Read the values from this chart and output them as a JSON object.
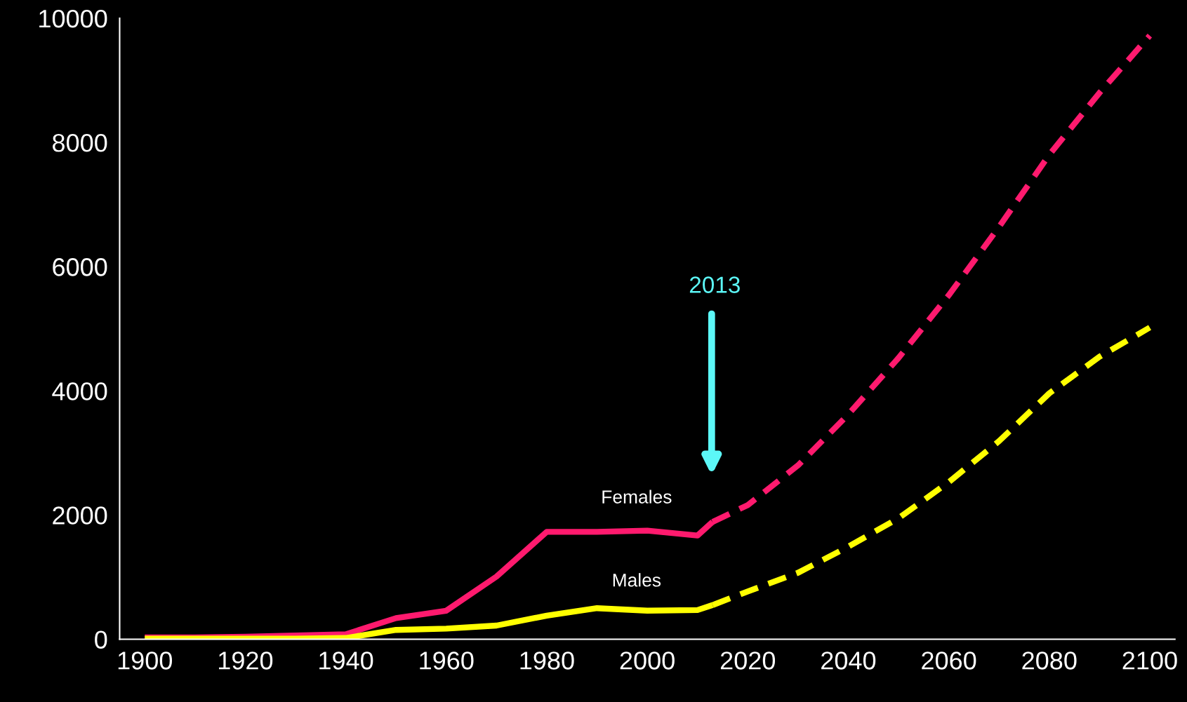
{
  "chart_data": {
    "type": "line",
    "xlim": [
      1895,
      2105
    ],
    "xticks": [
      1900,
      1920,
      1940,
      1960,
      1980,
      2000,
      2020,
      2040,
      2060,
      2080,
      2100
    ],
    "ylim": [
      0,
      10000
    ],
    "yticks": [
      0,
      2000,
      4000,
      6000,
      8000,
      10000
    ],
    "grid": false,
    "legend": false,
    "series": [
      {
        "name": "Females",
        "color": "#ff1a6e",
        "line_style": "solid",
        "x": [
          1900,
          1910,
          1920,
          1930,
          1940,
          1950,
          1960,
          1970,
          1980,
          1990,
          2000,
          2010,
          2013
        ],
        "values": [
          30,
          30,
          40,
          60,
          80,
          340,
          460,
          1010,
          1730,
          1730,
          1750,
          1670,
          1890
        ]
      },
      {
        "color": "#ff1a6e",
        "line_style": "dashed",
        "x": [
          2013,
          2020,
          2030,
          2040,
          2050,
          2060,
          2070,
          2080,
          2090,
          2100
        ],
        "values": [
          1890,
          2160,
          2800,
          3620,
          4530,
          5540,
          6640,
          7800,
          8800,
          9720
        ]
      },
      {
        "name": "Males",
        "color": "#ffff00",
        "line_style": "solid",
        "x": [
          1900,
          1910,
          1920,
          1930,
          1940,
          1950,
          1960,
          1970,
          1980,
          1990,
          2000,
          2010,
          2013
        ],
        "values": [
          10,
          10,
          10,
          10,
          20,
          150,
          170,
          220,
          380,
          500,
          460,
          470,
          550
        ]
      },
      {
        "color": "#ffff00",
        "line_style": "dashed",
        "x": [
          2013,
          2020,
          2030,
          2040,
          2050,
          2060,
          2070,
          2080,
          2090,
          2100
        ],
        "values": [
          550,
          770,
          1070,
          1490,
          1950,
          2530,
          3190,
          3960,
          4550,
          5020
        ]
      }
    ],
    "annotations": [
      "2013"
    ]
  }
}
